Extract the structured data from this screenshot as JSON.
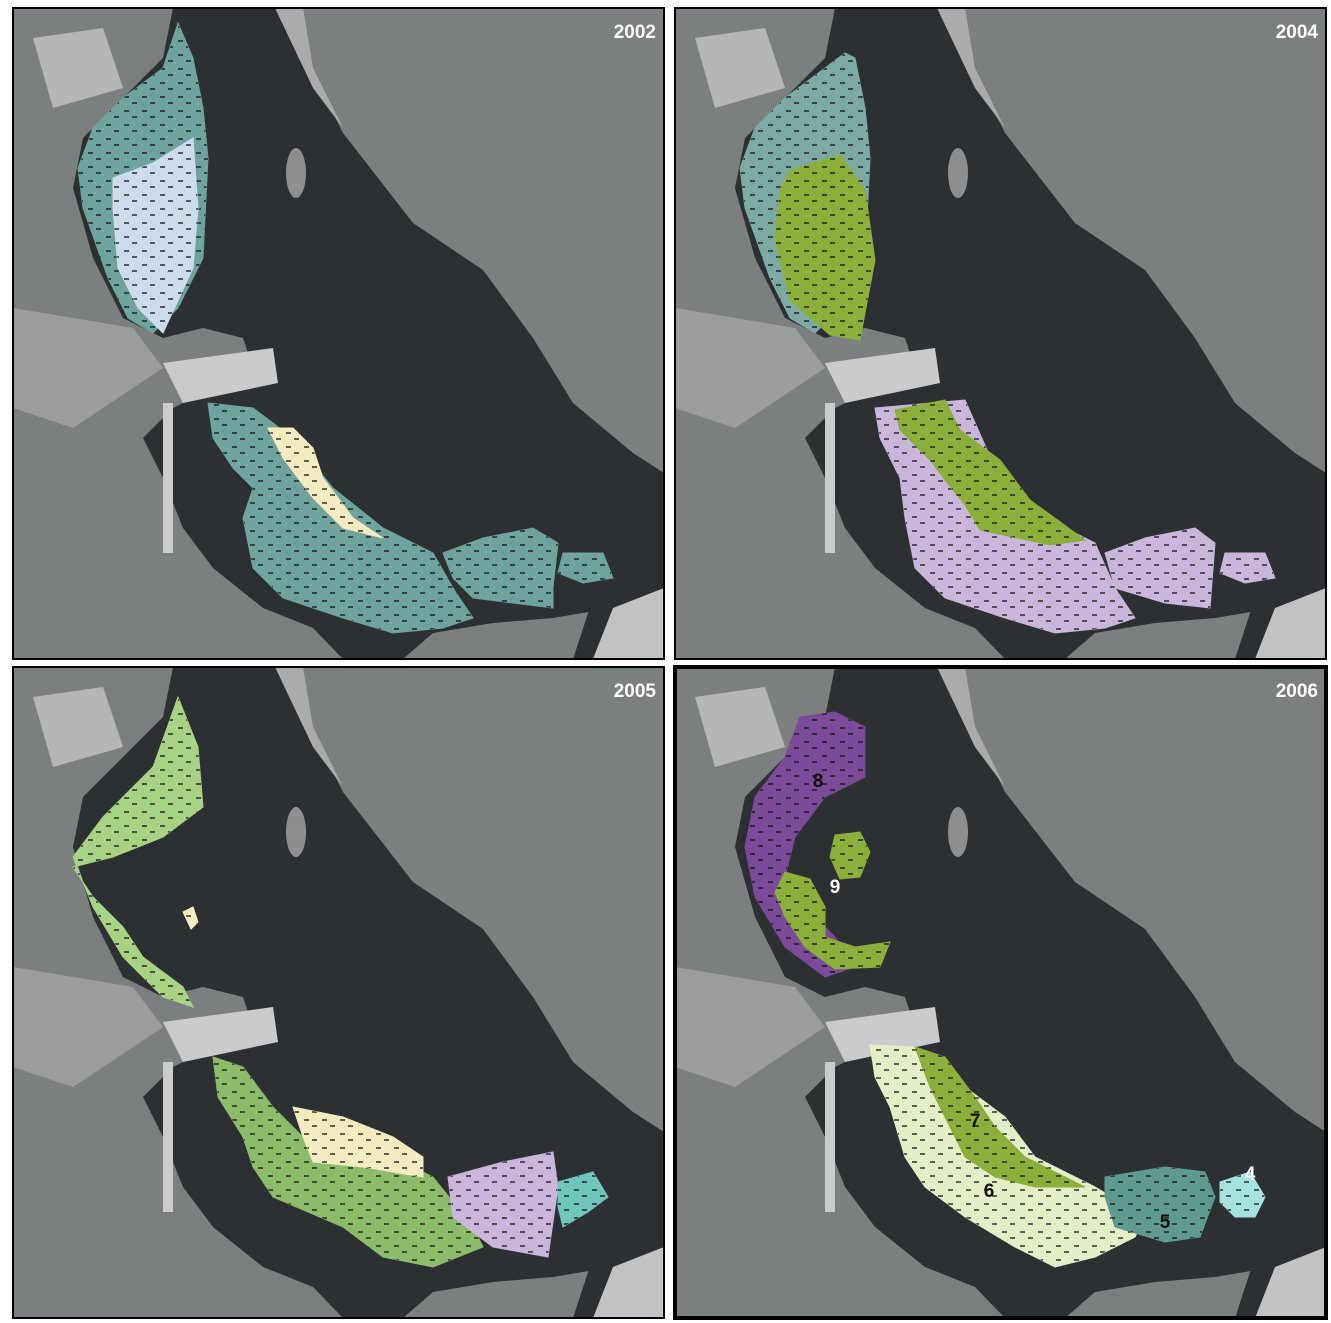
{
  "panels": [
    {
      "year": "2002"
    },
    {
      "year": "2004"
    },
    {
      "year": "2005"
    },
    {
      "year": "2006",
      "labels": [
        "8",
        "9",
        "7",
        "6",
        "5",
        "4"
      ]
    }
  ]
}
